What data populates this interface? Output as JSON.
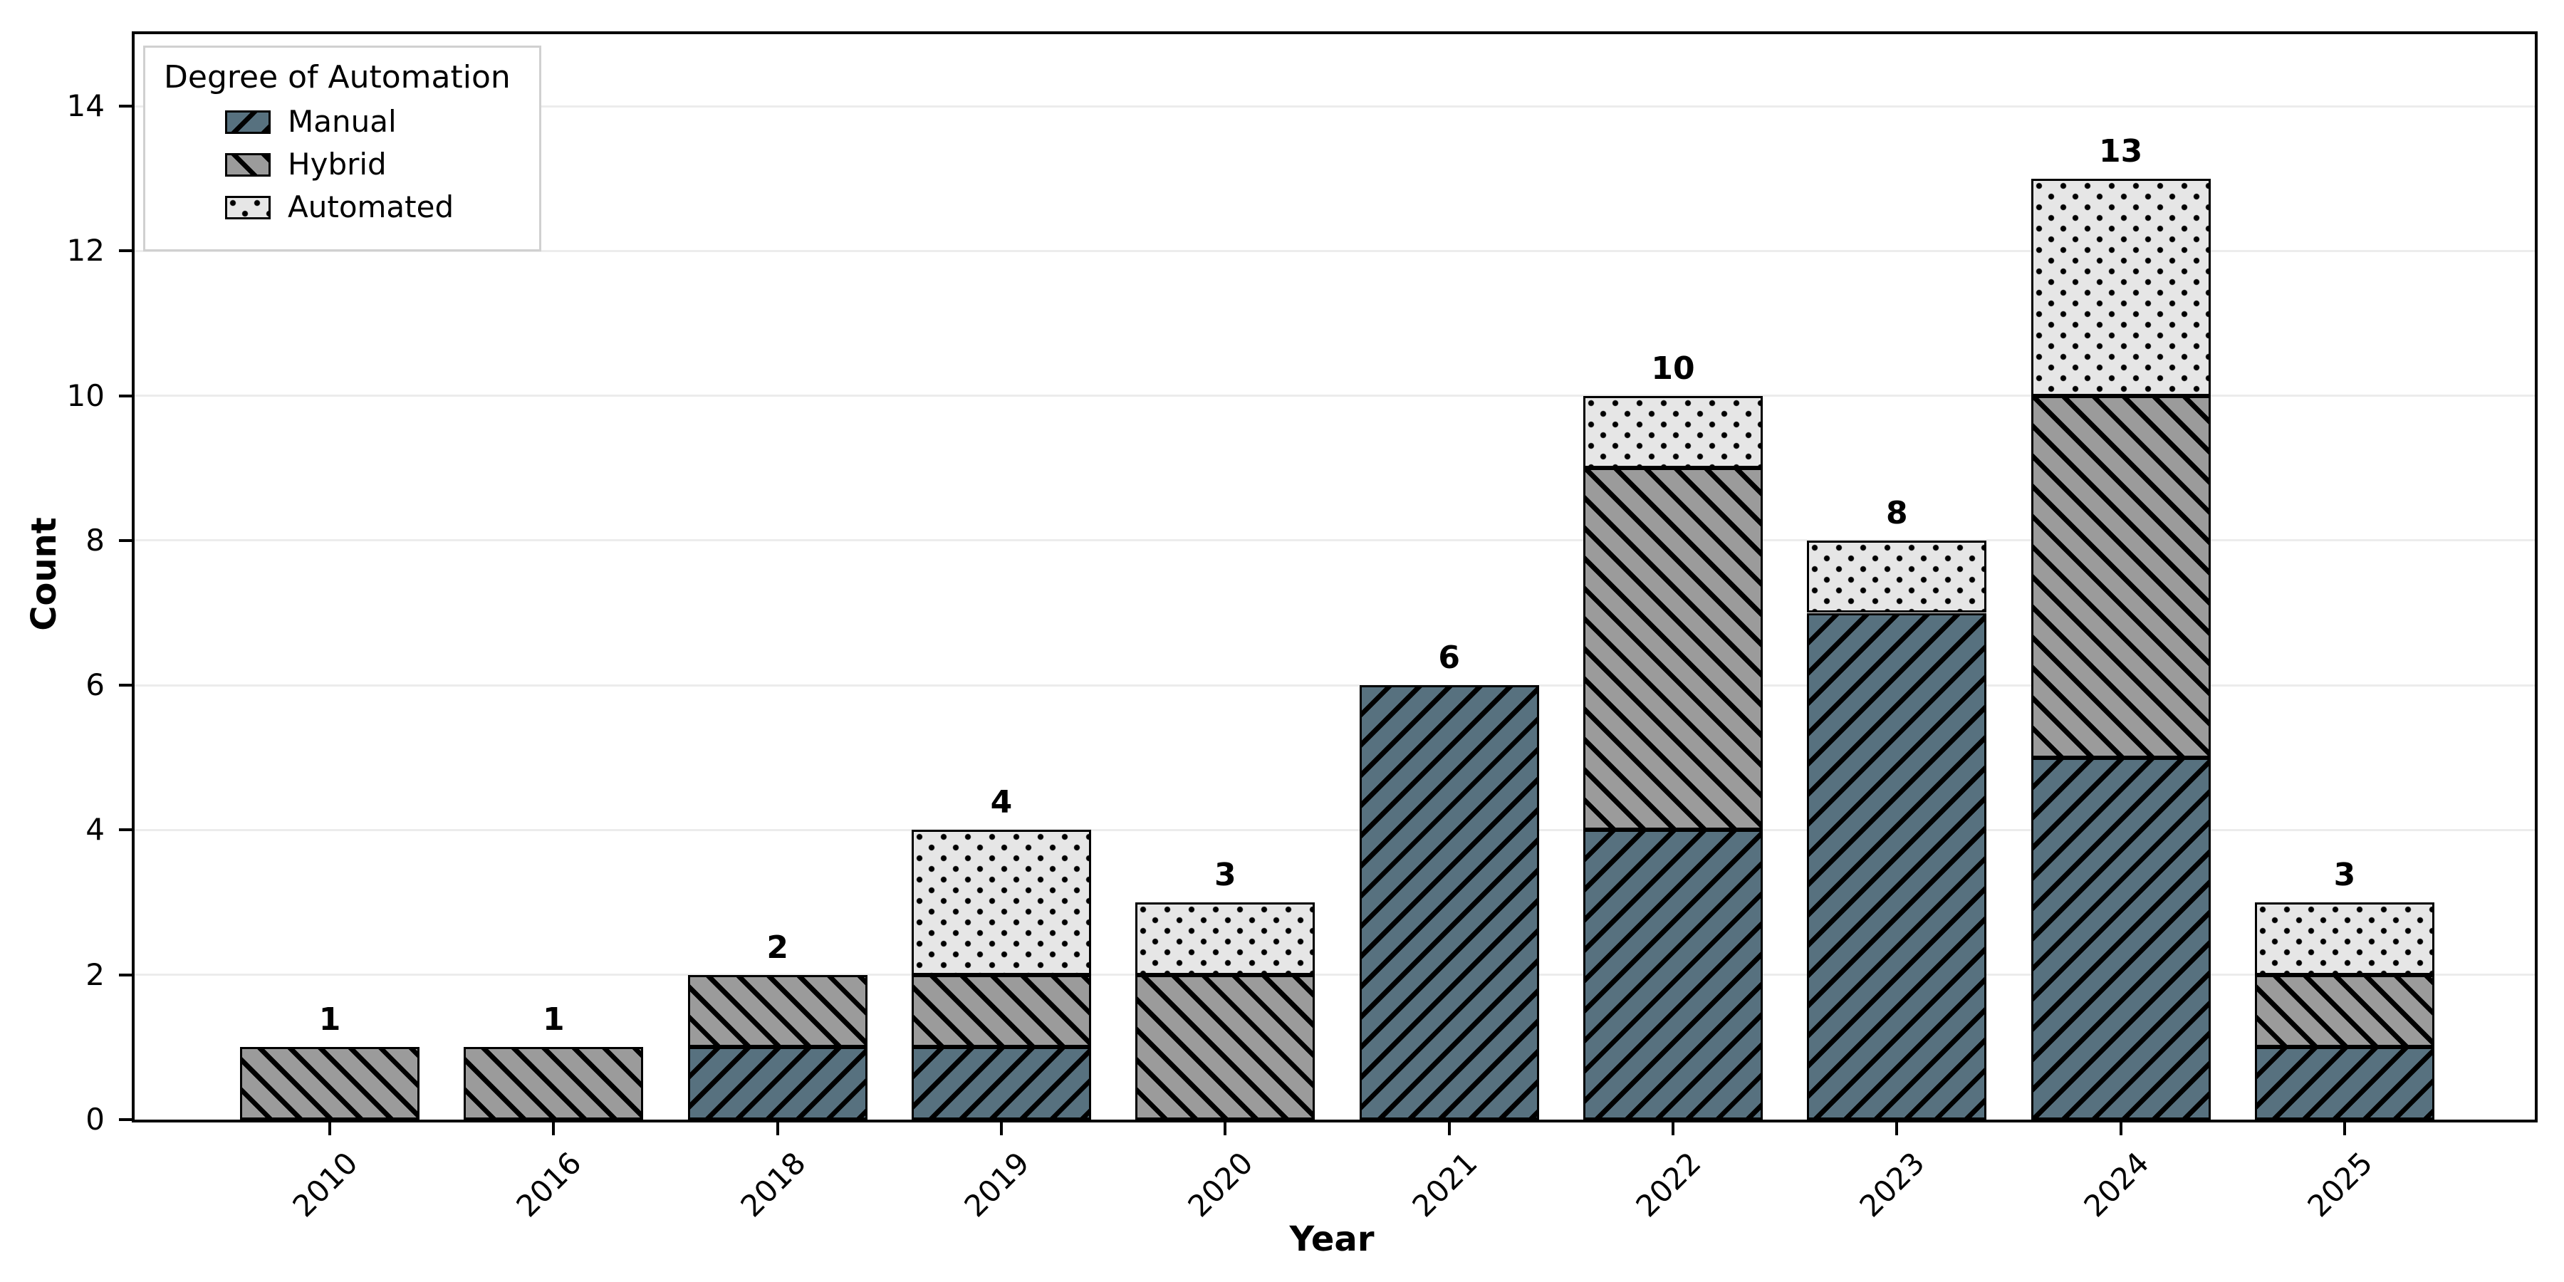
{
  "figure": {
    "background_color": "#ffffff",
    "plot_border_color": "#000000"
  },
  "legend": {
    "title": "Degree of Automation",
    "position": "upper left",
    "border_color": "#d0d0d0",
    "items": [
      {
        "label": "Manual",
        "swatch_icon": "manual-forward-slash-hatch-swatch"
      },
      {
        "label": "Hybrid",
        "swatch_icon": "hybrid-back-slash-hatch-swatch"
      },
      {
        "label": "Automated",
        "swatch_icon": "automated-dots-swatch"
      }
    ]
  },
  "chart_data": {
    "type": "bar",
    "stacked": true,
    "title": "",
    "xlabel": "Year",
    "ylabel": "Count",
    "categories": [
      "2010",
      "2016",
      "2018",
      "2019",
      "2020",
      "2021",
      "2022",
      "2023",
      "2024",
      "2025"
    ],
    "series": [
      {
        "name": "Manual",
        "hatch": "/",
        "color": "#57717f",
        "values": [
          0,
          0,
          1,
          1,
          0,
          6,
          4,
          7,
          5,
          1
        ]
      },
      {
        "name": "Hybrid",
        "hatch": "\\",
        "color": "#9b9b9b",
        "values": [
          1,
          1,
          1,
          1,
          2,
          0,
          5,
          0,
          5,
          1
        ]
      },
      {
        "name": "Automated",
        "hatch": ".",
        "color": "#e6e6e6",
        "values": [
          0,
          0,
          0,
          2,
          1,
          0,
          1,
          1,
          3,
          1
        ]
      }
    ],
    "totals": [
      1,
      1,
      2,
      4,
      3,
      6,
      10,
      8,
      13,
      3
    ],
    "yticks": [
      0,
      2,
      4,
      6,
      8,
      10,
      12,
      14
    ],
    "ylim": [
      0,
      15
    ],
    "xtick_rotation_degrees": 45,
    "grid": "horizontal",
    "grid_color": "#ececec",
    "bar_edge_color": "#000000",
    "legend_title": "Degree of Automation",
    "legend_position": "upper left"
  }
}
